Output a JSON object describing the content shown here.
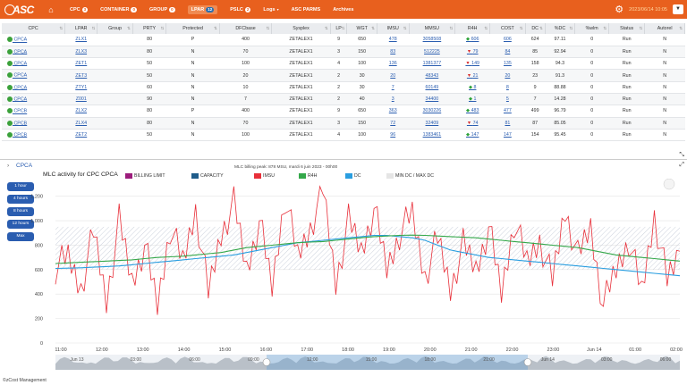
{
  "nav": {
    "logo": "ASC",
    "items": [
      {
        "label": "CPC",
        "badge": "3",
        "active": false
      },
      {
        "label": "CONTAINER",
        "badge": "0",
        "active": false
      },
      {
        "label": "GROUP",
        "badge": "0",
        "active": false
      },
      {
        "label": "LPAR",
        "badge": "12",
        "active": true
      },
      {
        "label": "PSLC",
        "badge": "2",
        "active": false
      },
      {
        "label": "Logs",
        "badge": "",
        "active": false
      },
      {
        "label": "ASC PARMS",
        "badge": "",
        "active": false
      },
      {
        "label": "Archives",
        "badge": "",
        "active": false
      }
    ],
    "datetime": "2023/06/14 10:05",
    "dropdown": "▼"
  },
  "table": {
    "columns": [
      "CPC",
      "LPAR",
      "Group",
      "PRTY",
      "Protected",
      "DFCbase",
      "Sysplex",
      "LP",
      "WGT",
      "IMSU",
      "MMSU",
      "R4H",
      "COST",
      "DC",
      "%DC",
      "%wlm",
      "Status",
      "Autorel"
    ],
    "rows": [
      {
        "cpc": "CPCA",
        "lpar": "ZLX1",
        "group": "",
        "prty": "80",
        "protected": "P",
        "dfc": "400",
        "sysplex": "ZETALEX1",
        "lp": "9",
        "wgt": "650",
        "imsu": "478",
        "mmsu": "3058508",
        "r4h": "606",
        "r4h_dir": "up",
        "cost": "606",
        "dc": "624",
        "pdc": "97.11",
        "wlm": "0",
        "status": "Run",
        "autorel": "N"
      },
      {
        "cpc": "CPCA",
        "lpar": "ZLX3",
        "group": "",
        "prty": "80",
        "protected": "N",
        "dfc": "70",
        "sysplex": "ZETALEX1",
        "lp": "3",
        "wgt": "150",
        "imsu": "83",
        "mmsu": "512225",
        "r4h": "79",
        "r4h_dir": "down",
        "cost": "84",
        "dc": "85",
        "pdc": "92.94",
        "wlm": "0",
        "status": "Run",
        "autorel": "N"
      },
      {
        "cpc": "CPCA",
        "lpar": "ZET1",
        "group": "",
        "prty": "50",
        "protected": "N",
        "dfc": "100",
        "sysplex": "ZETALEX1",
        "lp": "4",
        "wgt": "100",
        "imsu": "136",
        "mmsu": "1381377",
        "r4h": "149",
        "r4h_dir": "down",
        "cost": "135",
        "dc": "158",
        "pdc": "94.3",
        "wlm": "0",
        "status": "Run",
        "autorel": "N"
      },
      {
        "cpc": "CPCA",
        "lpar": "ZET3",
        "group": "",
        "prty": "50",
        "protected": "N",
        "dfc": "20",
        "sysplex": "ZETALEX1",
        "lp": "2",
        "wgt": "30",
        "imsu": "20",
        "mmsu": "48343",
        "r4h": "21",
        "r4h_dir": "down",
        "cost": "20",
        "dc": "23",
        "pdc": "91.3",
        "wlm": "0",
        "status": "Run",
        "autorel": "N"
      },
      {
        "cpc": "CPCA",
        "lpar": "ZTY1",
        "group": "",
        "prty": "60",
        "protected": "N",
        "dfc": "10",
        "sysplex": "ZETALEX1",
        "lp": "2",
        "wgt": "30",
        "imsu": "7",
        "mmsu": "60149",
        "r4h": "8",
        "r4h_dir": "up",
        "cost": "8",
        "dc": "9",
        "pdc": "88.88",
        "wlm": "0",
        "status": "Run",
        "autorel": "N"
      },
      {
        "cpc": "CPCA",
        "lpar": "Z001",
        "group": "",
        "prty": "90",
        "protected": "N",
        "dfc": "7",
        "sysplex": "ZETALEX1",
        "lp": "2",
        "wgt": "40",
        "imsu": "3",
        "mmsu": "34400",
        "r4h": "1",
        "r4h_dir": "up",
        "cost": "5",
        "dc": "7",
        "pdc": "14.28",
        "wlm": "0",
        "status": "Run",
        "autorel": "N"
      },
      {
        "cpc": "CPCB",
        "lpar": "ZLX2",
        "group": "",
        "prty": "80",
        "protected": "P",
        "dfc": "400",
        "sysplex": "ZETALEX1",
        "lp": "9",
        "wgt": "650",
        "imsu": "363",
        "mmsu": "3030226",
        "r4h": "483",
        "r4h_dir": "up",
        "cost": "477",
        "dc": "499",
        "pdc": "96.79",
        "wlm": "0",
        "status": "Run",
        "autorel": "N"
      },
      {
        "cpc": "CPCB",
        "lpar": "ZLX4",
        "group": "",
        "prty": "80",
        "protected": "N",
        "dfc": "70",
        "sysplex": "ZETALEX1",
        "lp": "3",
        "wgt": "150",
        "imsu": "72",
        "mmsu": "32409",
        "r4h": "74",
        "r4h_dir": "down",
        "cost": "81",
        "dc": "87",
        "pdc": "85.05",
        "wlm": "0",
        "status": "Run",
        "autorel": "N"
      },
      {
        "cpc": "CPCB",
        "lpar": "ZET2",
        "group": "",
        "prty": "50",
        "protected": "N",
        "dfc": "100",
        "sysplex": "ZETALEX1",
        "lp": "4",
        "wgt": "100",
        "imsu": "96",
        "mmsu": "1383461",
        "r4h": "147",
        "r4h_dir": "up",
        "cost": "147",
        "dc": "154",
        "pdc": "95.45",
        "wlm": "0",
        "status": "Run",
        "autorel": "N"
      }
    ]
  },
  "breadcrumb": "CPCA",
  "billing_note": "MLC billing peak: 878 MSU, mardi 6 juin 2023 - 00h00",
  "chart_title": "MLC activity for CPC CPCA",
  "range_buttons": [
    "1 hour",
    "4 hours",
    "8 hours",
    "12 hours",
    "Max"
  ],
  "footer": "©zCost Management",
  "chart_data": {
    "type": "line",
    "title": "MLC activity for CPC CPCA",
    "legend": [
      "BILLING LIMIT",
      "CAPACITY",
      "IMSU",
      "R4H",
      "DC",
      "MIN DC / MAX DC"
    ],
    "colors": {
      "billing": "#9c1c7c",
      "capacity": "#1f5c8a",
      "imsu": "#e8303a",
      "r4h": "#34a84a",
      "dc": "#2a9ee0",
      "band": "#c8cdd6"
    },
    "ylim": [
      0,
      1300
    ],
    "yticks": [
      0,
      200,
      400,
      600,
      800,
      1000,
      1200
    ],
    "ytick_labels": [
      "0",
      "200",
      "400",
      "600",
      "800",
      "1,000",
      "1,200"
    ],
    "xticks": [
      "11:00",
      "12:00",
      "13:00",
      "14:00",
      "15:00",
      "16:00",
      "17:00",
      "18:00",
      "19:00",
      "20:00",
      "21:00",
      "22:00",
      "23:00",
      "Jun 14",
      "01:00",
      "02:00"
    ],
    "navigator_ticks": [
      "Jun 13",
      "03:00",
      "06:00",
      "09:00",
      "12:00",
      "15:00",
      "18:00",
      "21:00",
      "Jun 14",
      "03:00",
      "06:00"
    ],
    "band_range": [
      600,
      950
    ],
    "series": [
      {
        "name": "R4H",
        "values": [
          650,
          655,
          660,
          665,
          670,
          675,
          680,
          690,
          700,
          705,
          710,
          720,
          730,
          740,
          760,
          780,
          790,
          800,
          810,
          820,
          825,
          830,
          840,
          850,
          860,
          870,
          875,
          880,
          882,
          880,
          875,
          870,
          865,
          860,
          850,
          840,
          830,
          820,
          810,
          800,
          790,
          780,
          760,
          740,
          720,
          710,
          700,
          690,
          680,
          670
        ]
      },
      {
        "name": "DC",
        "values": [
          610,
          612,
          615,
          620,
          625,
          630,
          640,
          650,
          660,
          670,
          680,
          690,
          700,
          710,
          720,
          740,
          760,
          780,
          800,
          820,
          830,
          840,
          850,
          860,
          870,
          880,
          880,
          870,
          860,
          840,
          800,
          760,
          740,
          720,
          700,
          690,
          680,
          670,
          660,
          650,
          640,
          630,
          620,
          610,
          600,
          590,
          580,
          570,
          560,
          550
        ]
      },
      {
        "name": "IMSU",
        "values": [
          620,
          700,
          450,
          900,
          350,
          1000,
          500,
          800,
          300,
          950,
          650,
          1100,
          400,
          900,
          1150,
          600,
          1000,
          450,
          1200,
          700,
          950,
          1250,
          500,
          1000,
          750,
          1100,
          600,
          900,
          1050,
          550,
          850,
          450,
          800,
          600,
          950,
          400,
          1000,
          650,
          850,
          500,
          1100,
          700,
          950,
          300,
          600,
          850,
          400,
          1050,
          500,
          750
        ]
      }
    ]
  }
}
